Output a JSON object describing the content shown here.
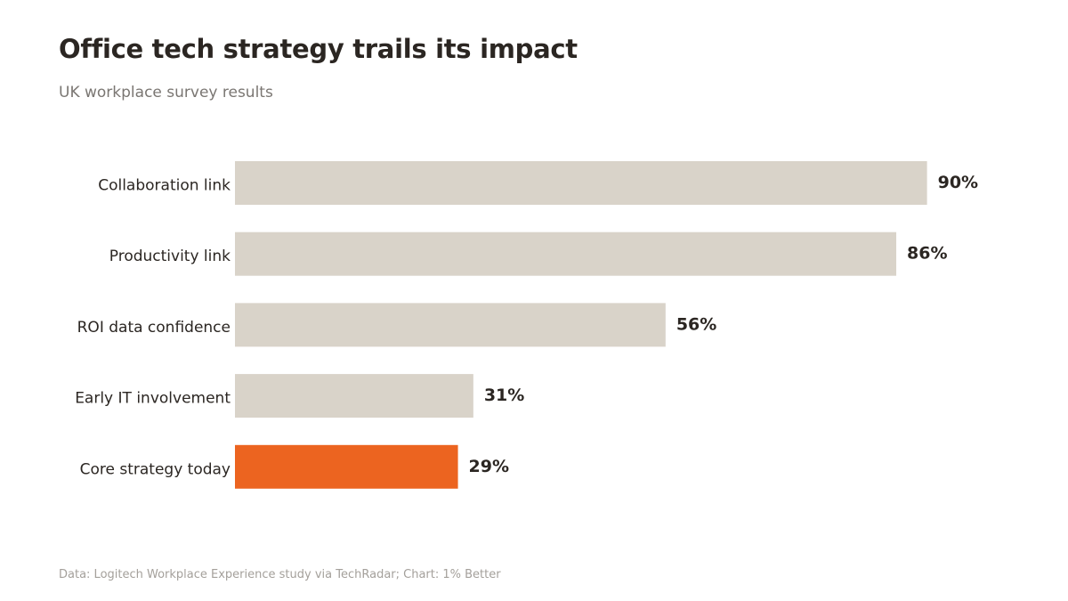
{
  "title": "Office tech strategy trails its impact",
  "subtitle": "UK workplace survey results",
  "source": "Data: Logitech Workplace Experience study via TechRadar; Chart: 1% Better",
  "colors": {
    "bar_default": "#d9d3c9",
    "bar_highlight": "#ec6420",
    "label_text": "#2b2622",
    "value_text": "#2b2622"
  },
  "chart_data": {
    "type": "bar",
    "orientation": "horizontal",
    "categories": [
      "Collaboration link",
      "Productivity link",
      "ROI data confidence",
      "Early IT involvement",
      "Core strategy today"
    ],
    "values": [
      90,
      86,
      56,
      31,
      29
    ],
    "value_labels": [
      "90%",
      "86%",
      "56%",
      "31%",
      "29%"
    ],
    "highlight_index": 4,
    "xlim": [
      0,
      100
    ],
    "grid": false,
    "legend": "none"
  }
}
